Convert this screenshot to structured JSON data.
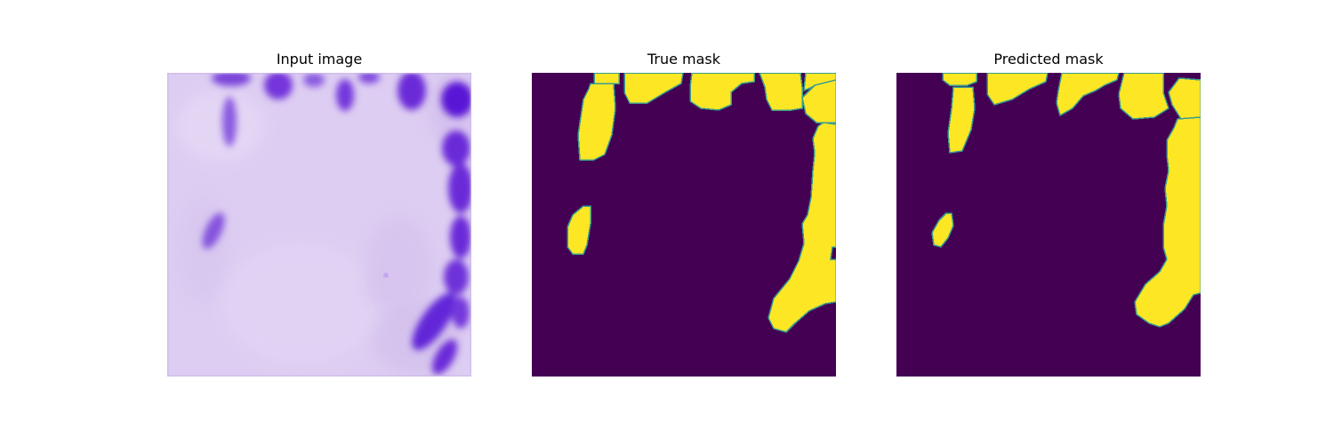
{
  "figure": {
    "panels": [
      {
        "title": "Input image"
      },
      {
        "title": "True mask"
      },
      {
        "title": "Predicted mask"
      }
    ]
  },
  "colors": {
    "tissue_background": "#ddcdf2",
    "stain_purple": "#6a2bd8",
    "mask_background": "#440154",
    "mask_foreground": "#fde725",
    "mask_edge": "#3a9c8d"
  }
}
